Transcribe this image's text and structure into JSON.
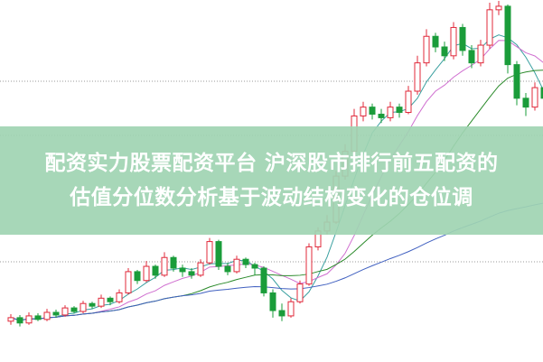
{
  "banner": {
    "line1": "配资实力股票配资平台 沪深股市排行前五配资的",
    "line2": "估值分位数分析基于波动结构变化的仓位调"
  },
  "colors": {
    "up": "#e0283a",
    "down": "#1a9c3a",
    "ma5": "#3aa0a0",
    "ma10": "#d070d0",
    "ma20": "#2a8a2a",
    "ma60": "#4060c0",
    "banner": "#a0d4b2"
  },
  "chart_data": {
    "type": "candlestick",
    "title": "",
    "grid": "dotted horizontal",
    "ohlc": [
      [
        40,
        44,
        48,
        36
      ],
      [
        44,
        38,
        47,
        34
      ],
      [
        38,
        46,
        50,
        36
      ],
      [
        46,
        42,
        49,
        40
      ],
      [
        42,
        50,
        54,
        40
      ],
      [
        50,
        47,
        53,
        44
      ],
      [
        47,
        55,
        58,
        45
      ],
      [
        55,
        51,
        57,
        49
      ],
      [
        51,
        60,
        63,
        49
      ],
      [
        60,
        57,
        62,
        54
      ],
      [
        57,
        66,
        70,
        55
      ],
      [
        66,
        62,
        68,
        58
      ],
      [
        62,
        72,
        76,
        60
      ],
      [
        72,
        96,
        100,
        70
      ],
      [
        96,
        86,
        98,
        82
      ],
      [
        86,
        102,
        108,
        84
      ],
      [
        102,
        92,
        104,
        88
      ],
      [
        92,
        112,
        118,
        90
      ],
      [
        112,
        100,
        114,
        96
      ],
      [
        100,
        96,
        104,
        90
      ],
      [
        96,
        92,
        100,
        88
      ],
      [
        92,
        106,
        110,
        90
      ],
      [
        106,
        130,
        134,
        104
      ],
      [
        130,
        102,
        132,
        98
      ],
      [
        102,
        96,
        106,
        92
      ],
      [
        96,
        110,
        114,
        94
      ],
      [
        110,
        104,
        112,
        100
      ],
      [
        104,
        100,
        106,
        92
      ],
      [
        100,
        72,
        102,
        68
      ],
      [
        72,
        52,
        76,
        44
      ],
      [
        52,
        46,
        60,
        40
      ],
      [
        46,
        62,
        66,
        44
      ],
      [
        62,
        82,
        86,
        60
      ],
      [
        82,
        124,
        128,
        80
      ],
      [
        124,
        142,
        146,
        120
      ],
      [
        142,
        152,
        160,
        138
      ],
      [
        152,
        204,
        210,
        150
      ],
      [
        204,
        232,
        240,
        200
      ],
      [
        232,
        272,
        280,
        228
      ],
      [
        272,
        282,
        288,
        266
      ],
      [
        282,
        274,
        286,
        268
      ],
      [
        274,
        270,
        280,
        264
      ],
      [
        270,
        282,
        288,
        266
      ],
      [
        282,
        276,
        286,
        270
      ],
      [
        276,
        300,
        306,
        274
      ],
      [
        300,
        332,
        340,
        296
      ],
      [
        332,
        362,
        370,
        328
      ],
      [
        362,
        350,
        366,
        344
      ],
      [
        350,
        340,
        356,
        334
      ],
      [
        340,
        372,
        378,
        336
      ],
      [
        372,
        346,
        376,
        340
      ],
      [
        346,
        332,
        352,
        326
      ],
      [
        332,
        352,
        358,
        328
      ],
      [
        352,
        392,
        400,
        348
      ],
      [
        392,
        396,
        402,
        386
      ],
      [
        396,
        330,
        398,
        320
      ],
      [
        330,
        292,
        334,
        284
      ],
      [
        292,
        282,
        298,
        272
      ],
      [
        282,
        304,
        310,
        278
      ],
      [
        304,
        292,
        308,
        286
      ]
    ],
    "moving_averages": [
      5,
      10,
      20,
      60
    ]
  }
}
